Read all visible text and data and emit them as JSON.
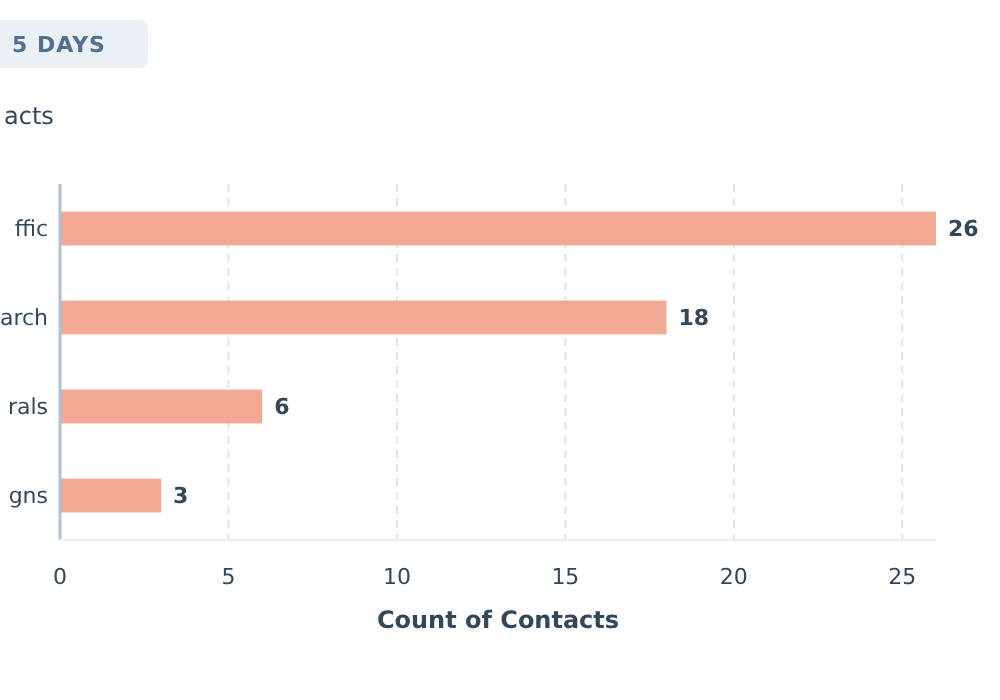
{
  "chart_data": {
    "type": "bar",
    "orientation": "horizontal",
    "title": "acts",
    "annotations": [
      "5 DAYS"
    ],
    "categories": [
      "ffic",
      "arch",
      "rals",
      "gns"
    ],
    "values": [
      26,
      18,
      6,
      3
    ],
    "color": "#f2a994",
    "data_labels": true,
    "xlim": [
      0,
      26
    ],
    "xticks": [
      0,
      5,
      10,
      15,
      20,
      25
    ],
    "xlabel": "Count of Contacts",
    "grid": "x"
  }
}
